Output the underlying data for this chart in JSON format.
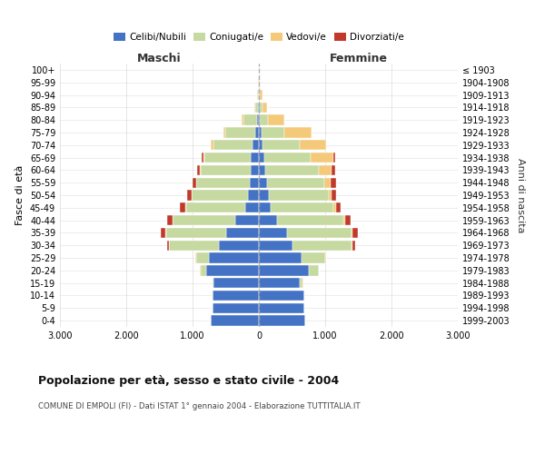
{
  "age_groups": [
    "0-4",
    "5-9",
    "10-14",
    "15-19",
    "20-24",
    "25-29",
    "30-34",
    "35-39",
    "40-44",
    "45-49",
    "50-54",
    "55-59",
    "60-64",
    "65-69",
    "70-74",
    "75-79",
    "80-84",
    "85-89",
    "90-94",
    "95-99",
    "100+"
  ],
  "birth_years": [
    "1999-2003",
    "1994-1998",
    "1989-1993",
    "1984-1988",
    "1979-1983",
    "1974-1978",
    "1969-1973",
    "1964-1968",
    "1959-1963",
    "1954-1958",
    "1949-1953",
    "1944-1948",
    "1939-1943",
    "1934-1938",
    "1929-1933",
    "1924-1928",
    "1919-1923",
    "1914-1918",
    "1909-1913",
    "1904-1908",
    "≤ 1903"
  ],
  "male": {
    "celibi": [
      720,
      700,
      700,
      680,
      800,
      750,
      600,
      500,
      350,
      200,
      160,
      140,
      130,
      120,
      90,
      60,
      30,
      10,
      5,
      0,
      0
    ],
    "coniugati": [
      0,
      0,
      5,
      20,
      80,
      200,
      750,
      900,
      950,
      900,
      850,
      800,
      750,
      700,
      600,
      450,
      200,
      50,
      20,
      5,
      2
    ],
    "vedovi": [
      0,
      0,
      0,
      5,
      5,
      5,
      5,
      5,
      5,
      5,
      5,
      5,
      10,
      20,
      30,
      30,
      30,
      10,
      5,
      2,
      1
    ],
    "divorziati": [
      0,
      0,
      0,
      0,
      5,
      10,
      30,
      70,
      80,
      80,
      70,
      60,
      40,
      20,
      5,
      0,
      0,
      0,
      0,
      0,
      0
    ]
  },
  "female": {
    "nubili": [
      700,
      680,
      680,
      620,
      750,
      650,
      500,
      420,
      280,
      180,
      150,
      130,
      100,
      80,
      60,
      40,
      20,
      10,
      5,
      0,
      0
    ],
    "coniugate": [
      0,
      0,
      10,
      40,
      150,
      350,
      900,
      980,
      1000,
      950,
      900,
      850,
      800,
      700,
      550,
      350,
      120,
      40,
      15,
      5,
      2
    ],
    "vedove": [
      0,
      0,
      0,
      5,
      5,
      10,
      10,
      10,
      20,
      30,
      50,
      100,
      200,
      350,
      400,
      400,
      250,
      80,
      30,
      8,
      2
    ],
    "divorziate": [
      0,
      0,
      0,
      0,
      5,
      10,
      40,
      80,
      80,
      70,
      70,
      80,
      50,
      20,
      5,
      5,
      0,
      0,
      0,
      0,
      0
    ]
  },
  "colors": {
    "celibi": "#4472c4",
    "coniugati": "#c5d9a0",
    "vedovi": "#f5c97a",
    "divorziati": "#c0392b"
  },
  "title": "Popolazione per età, sesso e stato civile - 2004",
  "subtitle": "COMUNE DI EMPOLI (FI) - Dati ISTAT 1° gennaio 2004 - Elaborazione TUTTITALIA.IT",
  "xlabel_left": "Maschi",
  "xlabel_right": "Femmine",
  "ylabel_left": "Fasce di età",
  "ylabel_right": "Anni di nascita",
  "xlim": 3000,
  "legend_labels": [
    "Celibi/Nubili",
    "Coniugati/e",
    "Vedovi/e",
    "Divorziati/e"
  ],
  "background_color": "#ffffff",
  "bar_height": 0.82
}
